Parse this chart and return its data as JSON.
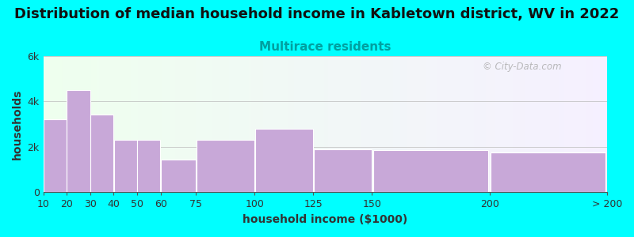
{
  "title": "Distribution of median household income in Kabletown district, WV in 2022",
  "subtitle": "Multirace residents",
  "xlabel": "household income ($1000)",
  "ylabel": "households",
  "background_color": "#00FFFF",
  "bar_color": "#C8A8D8",
  "subtitle_color": "#00A0A0",
  "title_fontsize": 13,
  "subtitle_fontsize": 11,
  "axis_label_fontsize": 10,
  "tick_fontsize": 9,
  "watermark_text": "© City-Data.com",
  "ylim": [
    0,
    6000
  ],
  "yticks": [
    0,
    2000,
    4000,
    6000
  ],
  "ytick_labels": [
    "0",
    "2k",
    "4k",
    "6k"
  ],
  "bin_lefts": [
    10,
    20,
    30,
    40,
    50,
    60,
    75,
    100,
    125,
    150,
    200
  ],
  "bin_widths": [
    10,
    10,
    10,
    10,
    10,
    15,
    25,
    25,
    25,
    50,
    50
  ],
  "bin_heights": [
    3200,
    4500,
    3400,
    2300,
    2300,
    1450,
    2300,
    2800,
    1900,
    1850,
    1750
  ],
  "xtick_positions": [
    10,
    20,
    30,
    40,
    50,
    60,
    75,
    100,
    125,
    150,
    200,
    250
  ],
  "xtick_labels": [
    "10",
    "20",
    "30",
    "40",
    "50",
    "60",
    "75",
    "100",
    "125",
    "150",
    "200",
    "> 200"
  ],
  "xmin": 10,
  "xmax": 250
}
